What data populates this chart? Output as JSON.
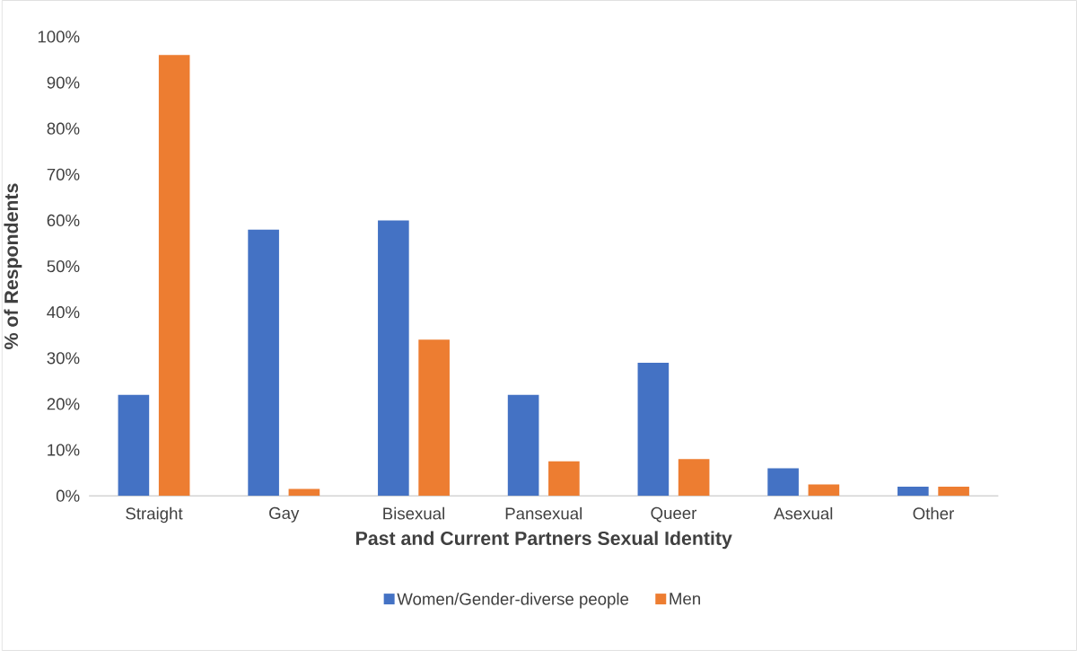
{
  "chart_data": {
    "type": "bar",
    "xlabel": "Past and Current Partners Sexual Identity",
    "ylabel": "% of Respondents",
    "categories": [
      "Straight",
      "Gay",
      "Bisexual",
      "Pansexual",
      "Queer",
      "Asexual",
      "Other"
    ],
    "series": [
      {
        "name": "Women/Gender-diverse people",
        "color": "#4472c4",
        "values": [
          22,
          58,
          60,
          22,
          29,
          6,
          2
        ]
      },
      {
        "name": "Men",
        "color": "#ed7d31",
        "values": [
          96,
          1.5,
          34,
          7.5,
          8,
          2.5,
          2
        ]
      }
    ],
    "ylim": [
      0,
      100
    ],
    "yticks": [
      {
        "value": 0,
        "label": "0%"
      },
      {
        "value": 10,
        "label": "10%"
      },
      {
        "value": 20,
        "label": "20%"
      },
      {
        "value": 30,
        "label": "30%"
      },
      {
        "value": 40,
        "label": "40%"
      },
      {
        "value": 50,
        "label": "50%"
      },
      {
        "value": 60,
        "label": "60%"
      },
      {
        "value": 70,
        "label": "70%"
      },
      {
        "value": 80,
        "label": "80%"
      },
      {
        "value": 90,
        "label": "90%"
      },
      {
        "value": 100,
        "label": "100%"
      }
    ],
    "legend": "bottom"
  }
}
